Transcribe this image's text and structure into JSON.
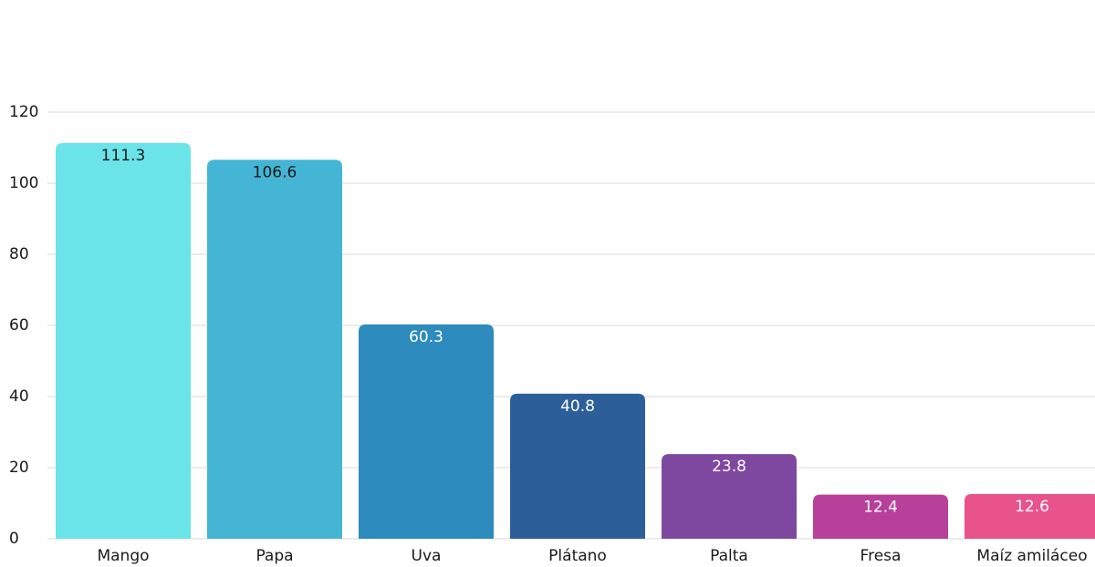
{
  "chart_data": {
    "type": "bar",
    "categories": [
      "Mango",
      "Papa",
      "Uva",
      "Plátano",
      "Palta",
      "Fresa",
      "Maíz amiláceo"
    ],
    "values": [
      111.3,
      106.6,
      60.3,
      40.8,
      23.8,
      12.4,
      12.6
    ],
    "colors": [
      "#6ae4e8",
      "#45b5d6",
      "#2d8bbd",
      "#2c5f99",
      "#7f48a0",
      "#b83f9a",
      "#e8538b"
    ],
    "value_label_colors": [
      "#1a1a1a",
      "#1a1a1a",
      "#ffffff",
      "#ffffff",
      "#ffffff",
      "#ffffff",
      "#ffffff"
    ],
    "ylim": [
      0,
      120
    ],
    "yticks": [
      0,
      20,
      40,
      60,
      80,
      100,
      120
    ],
    "grid": true
  }
}
